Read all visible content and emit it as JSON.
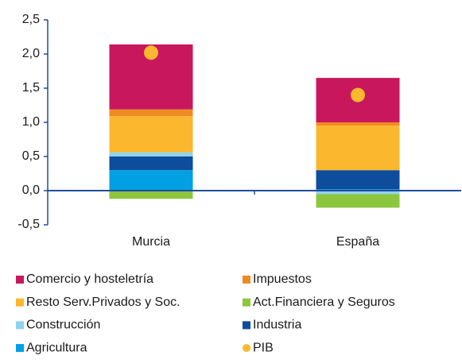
{
  "chart_data": {
    "type": "stacked_bar",
    "categories": [
      "Murcia",
      "España"
    ],
    "series": [
      {
        "name": "Comercio y hosteletría",
        "color": "#c8175d",
        "values": [
          0.95,
          0.65
        ]
      },
      {
        "name": "Impuestos",
        "color": "#f08a24",
        "values": [
          0.1,
          0.05
        ]
      },
      {
        "name": "Resto Serv.Privados y Soc.",
        "color": "#fbb82e",
        "values": [
          0.53,
          0.65
        ]
      },
      {
        "name": "Act.Financiera y Seguros",
        "color": "#8cc63e",
        "values": [
          -0.12,
          -0.2
        ]
      },
      {
        "name": "Construcción",
        "color": "#8fd3f2",
        "values": [
          0.06,
          -0.05
        ]
      },
      {
        "name": "Industria",
        "color": "#0e4d9c",
        "values": [
          0.2,
          0.28
        ]
      },
      {
        "name": "Agricultura",
        "color": "#00a0e3",
        "values": [
          0.3,
          0.02
        ]
      },
      {
        "name": "PIB",
        "color": "#fbb82e",
        "marker": "dot",
        "values": [
          2.02,
          1.4
        ]
      }
    ],
    "ylim": [
      -0.5,
      2.5
    ],
    "yticks": [
      {
        "value": -0.5,
        "label": "-0,5"
      },
      {
        "value": 0,
        "label": "0,0"
      },
      {
        "value": 0.5,
        "label": "0,5"
      },
      {
        "value": 1,
        "label": "1,0"
      },
      {
        "value": 1.5,
        "label": "1,5"
      },
      {
        "value": 2,
        "label": "2,0"
      },
      {
        "value": 2.5,
        "label": "2,5"
      }
    ]
  }
}
